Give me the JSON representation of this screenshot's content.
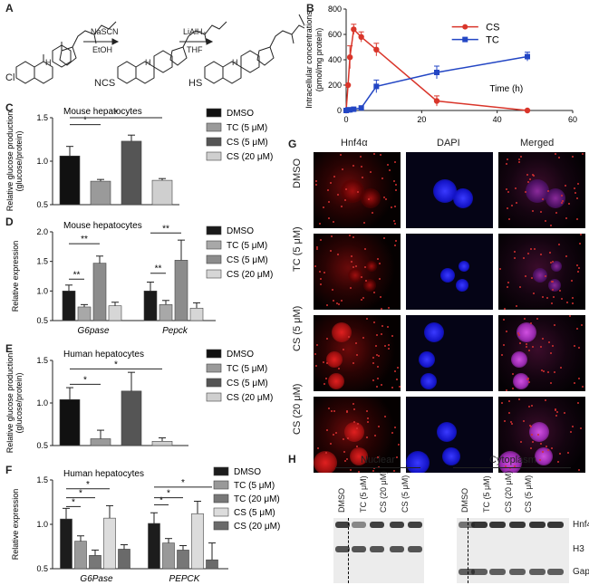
{
  "panels": {
    "A": "A",
    "B": "B",
    "C": "C",
    "D": "D",
    "E": "E",
    "F": "F",
    "G": "G",
    "H": "H"
  },
  "schemeA": {
    "step1_top": "NaSCN",
    "step1_bottom": "EtOH",
    "step2_top": "LiAlH₄",
    "step2_bottom": "THF",
    "left_group": "Cl",
    "mid_group": "NCS",
    "right_group": "HS",
    "H": "H"
  },
  "panelG": {
    "col_headers": [
      "Hnf4α",
      "DAPI",
      "Merged"
    ],
    "row_labels": [
      "DMSO",
      "TC (5 μM)",
      "CS (5 μM)",
      "CS (20 μM)"
    ]
  },
  "panelH": {
    "nuclear_title": "Nuclear",
    "cyto_title": "Cytoplasm",
    "lanes_left": [
      "DMSO",
      "TC (5 μM)",
      "CS (20 μM)",
      "CS (5 μM)"
    ],
    "lanes_right": [
      "DMSO",
      "TC (5 μM)",
      "CS (20 μM)",
      "CS (5 μM)"
    ],
    "rows": [
      "Hnf4α",
      "H3",
      "Gapdh"
    ]
  },
  "colors": {
    "cs": "#d9352a",
    "tc": "#2346c4",
    "dmso": "#111111",
    "tc5": "#9a9a9a",
    "cs5": "#555555",
    "cs20": "#cfcfcf"
  },
  "chart_data": [
    {
      "id": "B",
      "type": "line",
      "ylabel": "Intracellular concentrations (pmol/mg protein)",
      "xlabel_note": "Time (h)",
      "xlim": [
        0,
        60
      ],
      "ylim": [
        0,
        800
      ],
      "xticks": [
        "0",
        "20",
        "40",
        "60"
      ],
      "yticks": [
        "0",
        "200",
        "400",
        "600",
        "800"
      ],
      "series": [
        {
          "name": "CS",
          "x": [
            0,
            0.5,
            1,
            2,
            4,
            8,
            24,
            48
          ],
          "y": [
            0,
            200,
            420,
            640,
            580,
            480,
            75,
            0
          ],
          "err": [
            0,
            0,
            90,
            40,
            40,
            50,
            40,
            0
          ]
        },
        {
          "name": "TC",
          "x": [
            0,
            0.5,
            1,
            2,
            4,
            8,
            24,
            48
          ],
          "y": [
            0,
            5,
            5,
            10,
            20,
            190,
            300,
            425
          ],
          "err": [
            0,
            0,
            0,
            0,
            0,
            50,
            50,
            35
          ]
        }
      ]
    },
    {
      "id": "C",
      "type": "bar",
      "title": "Mouse hepatocytes",
      "ylabel": "Relative glucose production (glucose/protein)",
      "ylim": [
        0.5,
        1.5
      ],
      "yticks": [
        "0.5",
        "1.0",
        "1.5"
      ],
      "legend": [
        "DMSO",
        "TC (5 μM)",
        "CS (5 μM)",
        "CS (20 μM)"
      ],
      "values": [
        1.06,
        0.77,
        1.23,
        0.78
      ],
      "err": [
        0.11,
        0.02,
        0.07,
        0.02
      ],
      "sig": [
        "*",
        "*"
      ]
    },
    {
      "id": "D",
      "type": "bar",
      "title": "Mouse hepatocytes",
      "ylabel": "Relative expression",
      "ylim": [
        0.5,
        2.0
      ],
      "yticks": [
        "0.5",
        "1.0",
        "1.5",
        "2.0"
      ],
      "categories": [
        "G6pase",
        "Pepck"
      ],
      "legend": [
        "DMSO",
        "TC (5 μM)",
        "CS (5 μM)",
        "CS (20 μM)"
      ],
      "series": [
        {
          "name": "DMSO",
          "values": [
            1.0,
            1.0
          ],
          "err": [
            0.1,
            0.15
          ]
        },
        {
          "name": "TC (5 μM)",
          "values": [
            0.73,
            0.77
          ],
          "err": [
            0.04,
            0.07
          ]
        },
        {
          "name": "CS (5 μM)",
          "values": [
            1.47,
            1.52
          ],
          "err": [
            0.12,
            0.34
          ]
        },
        {
          "name": "CS (20 μM)",
          "values": [
            0.75,
            0.71
          ],
          "err": [
            0.06,
            0.09
          ]
        }
      ],
      "sig": [
        "**",
        "**",
        "**",
        "**"
      ]
    },
    {
      "id": "E",
      "type": "bar",
      "title": "Human hepatocytes",
      "ylabel": "Relative glucose production (glucose/protein)",
      "ylim": [
        0.5,
        1.5
      ],
      "yticks": [
        "0.5",
        "1.0",
        "1.5"
      ],
      "legend": [
        "DMSO",
        "TC (5 μM)",
        "CS (5 μM)",
        "CS (20 μM)"
      ],
      "values": [
        1.04,
        0.58,
        1.14,
        0.55
      ],
      "err": [
        0.14,
        0.1,
        0.22,
        0.04
      ],
      "sig": [
        "*",
        "*"
      ]
    },
    {
      "id": "F",
      "type": "bar",
      "title": "Human hepatocytes",
      "ylabel": "Relative expression",
      "ylim": [
        0.5,
        1.5
      ],
      "yticks": [
        "0.5",
        "1.0",
        "1.5"
      ],
      "categories": [
        "G6Pase",
        "PEPCK"
      ],
      "legend": [
        "DMSO",
        "TC (5 μM)",
        "TC (20 μM)",
        "CS (5 μM)",
        "CS (20 μM)"
      ],
      "series": [
        {
          "name": "DMSO",
          "values": [
            1.06,
            1.01
          ],
          "err": [
            0.12,
            0.12
          ]
        },
        {
          "name": "TC (5 μM)",
          "values": [
            0.81,
            0.79
          ],
          "err": [
            0.06,
            0.05
          ]
        },
        {
          "name": "TC (20 μM)",
          "values": [
            0.65,
            0.71
          ],
          "err": [
            0.06,
            0.05
          ]
        },
        {
          "name": "CS (5 μM)",
          "values": [
            1.07,
            1.12
          ],
          "err": [
            0.14,
            0.14
          ]
        },
        {
          "name": "CS (20 μM)",
          "values": [
            0.72,
            0.6
          ],
          "err": [
            0.05,
            0.19
          ]
        }
      ],
      "sig": [
        "*",
        "*",
        "*",
        "*",
        "*",
        "*"
      ]
    }
  ]
}
